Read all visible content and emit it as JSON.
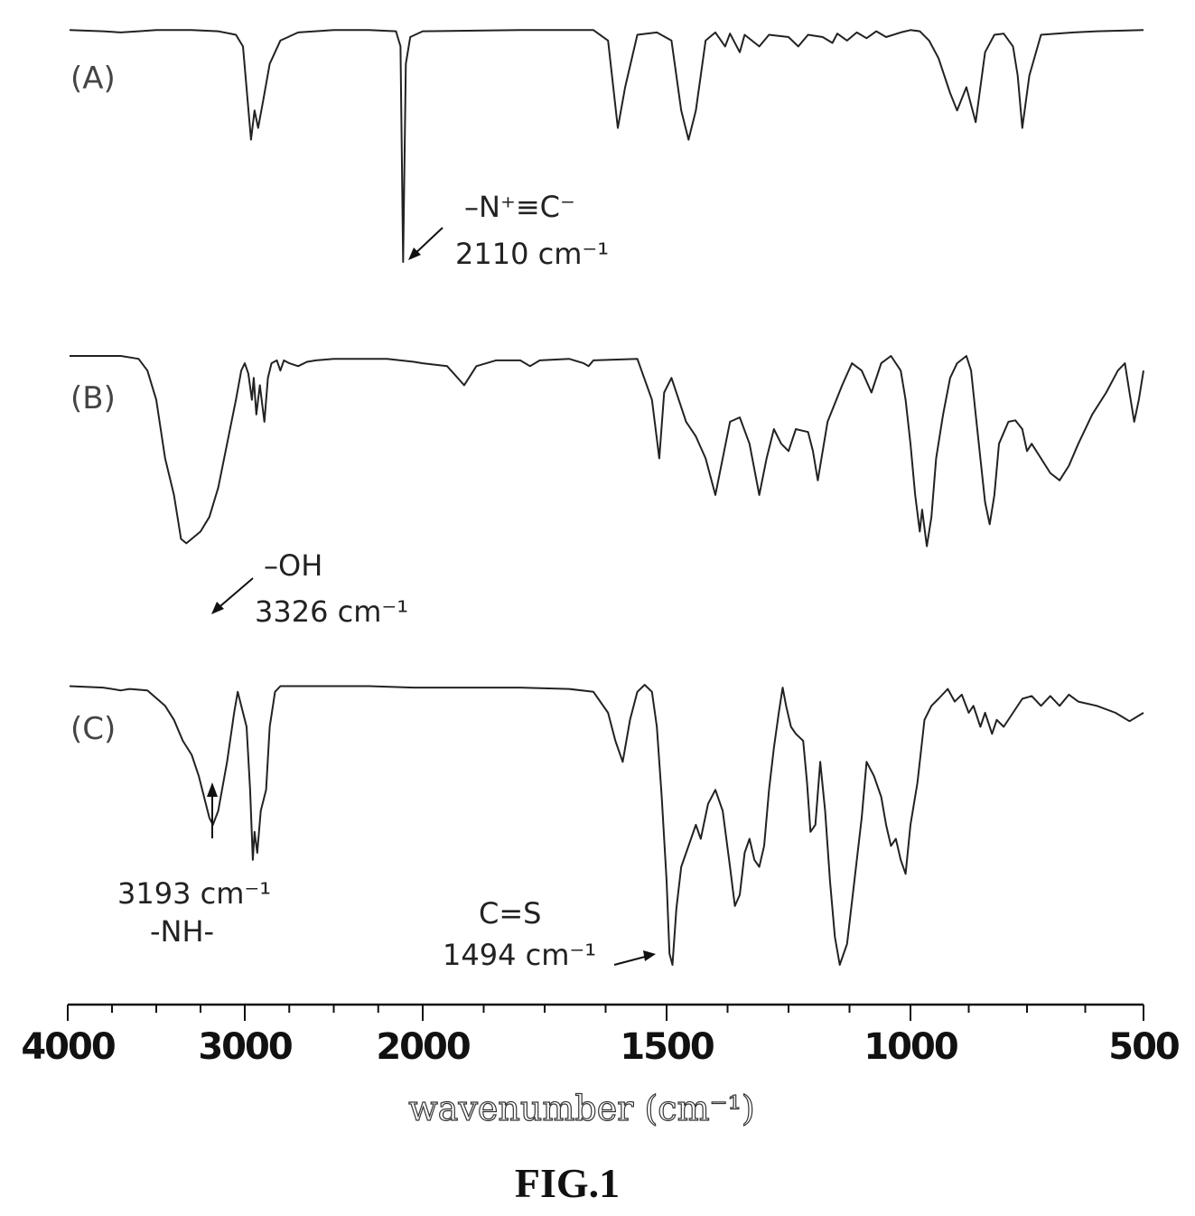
{
  "chart_data": {
    "type": "line",
    "xlabel": "wavenumber (cm⁻¹)",
    "xlim": [
      4000,
      500
    ],
    "x_reversed": true,
    "x_ticks": [
      "4000",
      "3000",
      "2000",
      "1500",
      "1000",
      "500"
    ],
    "series": [
      {
        "name": "(A)",
        "points": [
          [
            3990,
            0.99
          ],
          [
            3800,
            0.98
          ],
          [
            3700,
            0.97
          ],
          [
            3600,
            0.98
          ],
          [
            3500,
            0.99
          ],
          [
            3300,
            0.99
          ],
          [
            3150,
            0.98
          ],
          [
            3050,
            0.95
          ],
          [
            3010,
            0.85
          ],
          [
            2965,
            0.05
          ],
          [
            2945,
            0.3
          ],
          [
            2925,
            0.15
          ],
          [
            2895,
            0.4
          ],
          [
            2860,
            0.7
          ],
          [
            2800,
            0.9
          ],
          [
            2700,
            0.97
          ],
          [
            2500,
            0.99
          ],
          [
            2300,
            0.99
          ],
          [
            2150,
            0.98
          ],
          [
            2125,
            0.85
          ],
          [
            2110,
            -1.0
          ],
          [
            2095,
            0.7
          ],
          [
            2070,
            0.93
          ],
          [
            2000,
            0.98
          ],
          [
            1800,
            0.99
          ],
          [
            1650,
            0.99
          ],
          [
            1620,
            0.9
          ],
          [
            1600,
            0.15
          ],
          [
            1585,
            0.5
          ],
          [
            1560,
            0.95
          ],
          [
            1520,
            0.97
          ],
          [
            1490,
            0.9
          ],
          [
            1470,
            0.3
          ],
          [
            1455,
            0.05
          ],
          [
            1440,
            0.3
          ],
          [
            1420,
            0.9
          ],
          [
            1400,
            0.97
          ],
          [
            1380,
            0.85
          ],
          [
            1370,
            0.96
          ],
          [
            1350,
            0.8
          ],
          [
            1340,
            0.95
          ],
          [
            1310,
            0.85
          ],
          [
            1290,
            0.95
          ],
          [
            1250,
            0.93
          ],
          [
            1230,
            0.85
          ],
          [
            1210,
            0.95
          ],
          [
            1180,
            0.93
          ],
          [
            1160,
            0.88
          ],
          [
            1150,
            0.96
          ],
          [
            1130,
            0.9
          ],
          [
            1110,
            0.97
          ],
          [
            1090,
            0.92
          ],
          [
            1070,
            0.98
          ],
          [
            1050,
            0.93
          ],
          [
            1020,
            0.97
          ],
          [
            1000,
            0.99
          ],
          [
            980,
            0.98
          ],
          [
            960,
            0.9
          ],
          [
            940,
            0.75
          ],
          [
            915,
            0.45
          ],
          [
            900,
            0.3
          ],
          [
            880,
            0.5
          ],
          [
            860,
            0.2
          ],
          [
            840,
            0.8
          ],
          [
            820,
            0.95
          ],
          [
            800,
            0.96
          ],
          [
            780,
            0.85
          ],
          [
            770,
            0.6
          ],
          [
            760,
            0.15
          ],
          [
            745,
            0.6
          ],
          [
            720,
            0.95
          ],
          [
            650,
            0.97
          ],
          [
            600,
            0.98
          ],
          [
            500,
            0.99
          ]
        ]
      },
      {
        "name": "(B)",
        "points": [
          [
            3990,
            1.0
          ],
          [
            3700,
            1.0
          ],
          [
            3600,
            0.98
          ],
          [
            3550,
            0.9
          ],
          [
            3500,
            0.7
          ],
          [
            3450,
            0.3
          ],
          [
            3400,
            0.05
          ],
          [
            3360,
            -0.25
          ],
          [
            3330,
            -0.28
          ],
          [
            3300,
            -0.25
          ],
          [
            3250,
            -0.2
          ],
          [
            3200,
            -0.1
          ],
          [
            3150,
            0.1
          ],
          [
            3100,
            0.4
          ],
          [
            3050,
            0.7
          ],
          [
            3020,
            0.9
          ],
          [
            3000,
            0.95
          ],
          [
            2980,
            0.88
          ],
          [
            2960,
            0.7
          ],
          [
            2950,
            0.85
          ],
          [
            2935,
            0.6
          ],
          [
            2915,
            0.8
          ],
          [
            2890,
            0.55
          ],
          [
            2870,
            0.85
          ],
          [
            2850,
            0.95
          ],
          [
            2820,
            0.97
          ],
          [
            2800,
            0.9
          ],
          [
            2780,
            0.97
          ],
          [
            2750,
            0.95
          ],
          [
            2700,
            0.93
          ],
          [
            2650,
            0.96
          ],
          [
            2600,
            0.97
          ],
          [
            2500,
            0.98
          ],
          [
            2200,
            0.98
          ],
          [
            2050,
            0.96
          ],
          [
            2000,
            0.95
          ],
          [
            1950,
            0.93
          ],
          [
            1915,
            0.8
          ],
          [
            1890,
            0.93
          ],
          [
            1850,
            0.97
          ],
          [
            1800,
            0.97
          ],
          [
            1780,
            0.93
          ],
          [
            1760,
            0.97
          ],
          [
            1700,
            0.98
          ],
          [
            1670,
            0.95
          ],
          [
            1660,
            0.93
          ],
          [
            1650,
            0.97
          ],
          [
            1560,
            0.98
          ],
          [
            1530,
            0.7
          ],
          [
            1515,
            0.3
          ],
          [
            1505,
            0.75
          ],
          [
            1490,
            0.85
          ],
          [
            1475,
            0.7
          ],
          [
            1460,
            0.55
          ],
          [
            1440,
            0.45
          ],
          [
            1420,
            0.3
          ],
          [
            1400,
            0.05
          ],
          [
            1385,
            0.3
          ],
          [
            1370,
            0.55
          ],
          [
            1350,
            0.58
          ],
          [
            1330,
            0.4
          ],
          [
            1310,
            0.05
          ],
          [
            1295,
            0.3
          ],
          [
            1280,
            0.5
          ],
          [
            1265,
            0.4
          ],
          [
            1250,
            0.35
          ],
          [
            1235,
            0.5
          ],
          [
            1210,
            0.48
          ],
          [
            1200,
            0.35
          ],
          [
            1190,
            0.15
          ],
          [
            1170,
            0.55
          ],
          [
            1140,
            0.8
          ],
          [
            1120,
            0.95
          ],
          [
            1100,
            0.9
          ],
          [
            1080,
            0.75
          ],
          [
            1060,
            0.95
          ],
          [
            1040,
            1.0
          ],
          [
            1020,
            0.9
          ],
          [
            1010,
            0.7
          ],
          [
            1000,
            0.4
          ],
          [
            990,
            0.05
          ],
          [
            980,
            -0.2
          ],
          [
            975,
            -0.05
          ],
          [
            965,
            -0.3
          ],
          [
            955,
            -0.1
          ],
          [
            945,
            0.3
          ],
          [
            930,
            0.6
          ],
          [
            915,
            0.85
          ],
          [
            900,
            0.95
          ],
          [
            880,
            1.0
          ],
          [
            870,
            0.9
          ],
          [
            860,
            0.6
          ],
          [
            850,
            0.3
          ],
          [
            840,
            0.0
          ],
          [
            830,
            -0.15
          ],
          [
            820,
            0.05
          ],
          [
            810,
            0.4
          ],
          [
            790,
            0.55
          ],
          [
            775,
            0.56
          ],
          [
            760,
            0.5
          ],
          [
            750,
            0.35
          ],
          [
            740,
            0.4
          ],
          [
            720,
            0.3
          ],
          [
            700,
            0.2
          ],
          [
            680,
            0.15
          ],
          [
            660,
            0.25
          ],
          [
            640,
            0.4
          ],
          [
            610,
            0.6
          ],
          [
            580,
            0.75
          ],
          [
            555,
            0.9
          ],
          [
            540,
            0.95
          ],
          [
            530,
            0.75
          ],
          [
            520,
            0.55
          ],
          [
            510,
            0.7
          ],
          [
            500,
            0.9
          ]
        ]
      },
      {
        "name": "(C)",
        "points": [
          [
            3990,
            0.99
          ],
          [
            3800,
            0.98
          ],
          [
            3700,
            0.96
          ],
          [
            3650,
            0.97
          ],
          [
            3550,
            0.96
          ],
          [
            3450,
            0.85
          ],
          [
            3400,
            0.75
          ],
          [
            3350,
            0.6
          ],
          [
            3300,
            0.5
          ],
          [
            3260,
            0.35
          ],
          [
            3230,
            0.2
          ],
          [
            3200,
            0.05
          ],
          [
            3180,
            0.0
          ],
          [
            3150,
            0.1
          ],
          [
            3100,
            0.45
          ],
          [
            3060,
            0.8
          ],
          [
            3040,
            0.95
          ],
          [
            3020,
            0.85
          ],
          [
            2990,
            0.7
          ],
          [
            2970,
            0.25
          ],
          [
            2955,
            -0.25
          ],
          [
            2945,
            -0.05
          ],
          [
            2930,
            -0.2
          ],
          [
            2910,
            0.1
          ],
          [
            2880,
            0.25
          ],
          [
            2860,
            0.7
          ],
          [
            2830,
            0.95
          ],
          [
            2800,
            0.99
          ],
          [
            2600,
            0.99
          ],
          [
            2300,
            0.99
          ],
          [
            2050,
            0.98
          ],
          [
            2000,
            0.98
          ],
          [
            1800,
            0.98
          ],
          [
            1700,
            0.97
          ],
          [
            1650,
            0.95
          ],
          [
            1620,
            0.8
          ],
          [
            1605,
            0.6
          ],
          [
            1590,
            0.45
          ],
          [
            1575,
            0.75
          ],
          [
            1560,
            0.95
          ],
          [
            1545,
            1.0
          ],
          [
            1530,
            0.95
          ],
          [
            1520,
            0.7
          ],
          [
            1510,
            0.2
          ],
          [
            1500,
            -0.4
          ],
          [
            1494,
            -0.92
          ],
          [
            1488,
            -1.0
          ],
          [
            1480,
            -0.6
          ],
          [
            1470,
            -0.3
          ],
          [
            1455,
            -0.15
          ],
          [
            1440,
            0.0
          ],
          [
            1430,
            -0.1
          ],
          [
            1415,
            0.15
          ],
          [
            1400,
            0.25
          ],
          [
            1385,
            0.1
          ],
          [
            1370,
            -0.3
          ],
          [
            1360,
            -0.58
          ],
          [
            1350,
            -0.5
          ],
          [
            1340,
            -0.2
          ],
          [
            1330,
            -0.1
          ],
          [
            1320,
            -0.25
          ],
          [
            1310,
            -0.3
          ],
          [
            1300,
            -0.15
          ],
          [
            1290,
            0.25
          ],
          [
            1280,
            0.55
          ],
          [
            1270,
            0.8
          ],
          [
            1262,
            0.98
          ],
          [
            1255,
            0.85
          ],
          [
            1245,
            0.7
          ],
          [
            1235,
            0.65
          ],
          [
            1220,
            0.6
          ],
          [
            1212,
            0.3
          ],
          [
            1205,
            -0.05
          ],
          [
            1195,
            0.0
          ],
          [
            1185,
            0.45
          ],
          [
            1175,
            0.1
          ],
          [
            1165,
            -0.4
          ],
          [
            1155,
            -0.8
          ],
          [
            1145,
            -1.0
          ],
          [
            1130,
            -0.85
          ],
          [
            1115,
            -0.4
          ],
          [
            1100,
            0.05
          ],
          [
            1090,
            0.45
          ],
          [
            1075,
            0.35
          ],
          [
            1060,
            0.2
          ],
          [
            1050,
            0.0
          ],
          [
            1040,
            -0.15
          ],
          [
            1030,
            -0.1
          ],
          [
            1020,
            -0.25
          ],
          [
            1010,
            -0.35
          ],
          [
            1000,
            0.0
          ],
          [
            985,
            0.3
          ],
          [
            970,
            0.75
          ],
          [
            955,
            0.85
          ],
          [
            940,
            0.9
          ],
          [
            920,
            0.97
          ],
          [
            905,
            0.88
          ],
          [
            890,
            0.93
          ],
          [
            875,
            0.8
          ],
          [
            865,
            0.85
          ],
          [
            850,
            0.7
          ],
          [
            840,
            0.8
          ],
          [
            825,
            0.65
          ],
          [
            815,
            0.75
          ],
          [
            800,
            0.7
          ],
          [
            780,
            0.8
          ],
          [
            760,
            0.9
          ],
          [
            740,
            0.92
          ],
          [
            720,
            0.85
          ],
          [
            700,
            0.92
          ],
          [
            680,
            0.85
          ],
          [
            660,
            0.93
          ],
          [
            640,
            0.88
          ],
          [
            600,
            0.85
          ],
          [
            560,
            0.8
          ],
          [
            530,
            0.74
          ],
          [
            500,
            0.8
          ]
        ]
      }
    ],
    "annotations": [
      {
        "line1": "–N⁺≡C⁻",
        "line2": "2110 cm⁻¹",
        "series": "(A)"
      },
      {
        "line1": "–OH",
        "line2": "3326 cm⁻¹",
        "series": "(B)"
      },
      {
        "line1": "3193 cm⁻¹",
        "line2": "-NH-",
        "series": "(C)"
      },
      {
        "line1": "C=S",
        "line2": "1494 cm⁻¹",
        "series": "(C)"
      }
    ],
    "grid": false
  },
  "figure_label": "FIG.1"
}
